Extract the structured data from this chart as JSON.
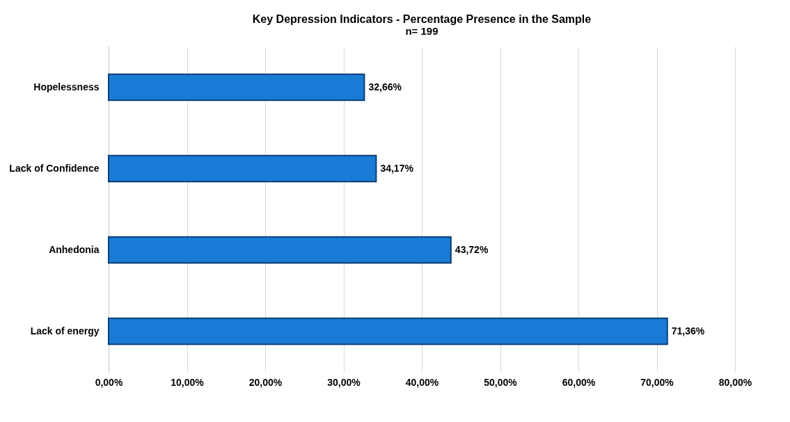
{
  "chart_data": {
    "type": "bar",
    "orientation": "horizontal",
    "title": "Key Depression Indicators - Percentage Presence in the Sample",
    "subtitle": "n= 199",
    "categories": [
      "Hopelessness",
      "Lack of Confidence",
      "Anhedonia",
      "Lack of energy"
    ],
    "values": [
      32.66,
      34.17,
      43.72,
      71.36
    ],
    "value_labels": [
      "32,66%",
      "34,17%",
      "43,72%",
      "71,36%"
    ],
    "color": "#1a7bd6",
    "xlim": [
      0,
      80
    ],
    "xticks": [
      {
        "value": 0,
        "label": "0,00%"
      },
      {
        "value": 10,
        "label": "10,00%"
      },
      {
        "value": 20,
        "label": "20,00%"
      },
      {
        "value": 30,
        "label": "30,00%"
      },
      {
        "value": 40,
        "label": "40,00%"
      },
      {
        "value": 50,
        "label": "50,00%"
      },
      {
        "value": 60,
        "label": "60,00%"
      },
      {
        "value": 70,
        "label": "70,00%"
      },
      {
        "value": 80,
        "label": "80,00%"
      }
    ],
    "grid": "x"
  }
}
